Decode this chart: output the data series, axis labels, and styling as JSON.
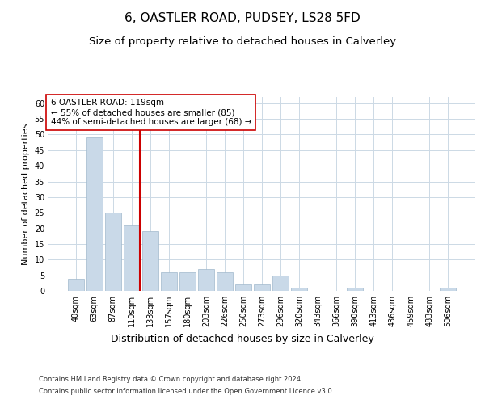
{
  "title": "6, OASTLER ROAD, PUDSEY, LS28 5FD",
  "subtitle": "Size of property relative to detached houses in Calverley",
  "xlabel": "Distribution of detached houses by size in Calverley",
  "ylabel": "Number of detached properties",
  "categories": [
    "40sqm",
    "63sqm",
    "87sqm",
    "110sqm",
    "133sqm",
    "157sqm",
    "180sqm",
    "203sqm",
    "226sqm",
    "250sqm",
    "273sqm",
    "296sqm",
    "320sqm",
    "343sqm",
    "366sqm",
    "390sqm",
    "413sqm",
    "436sqm",
    "459sqm",
    "483sqm",
    "506sqm"
  ],
  "values": [
    4,
    49,
    25,
    21,
    19,
    6,
    6,
    7,
    6,
    2,
    2,
    5,
    1,
    0,
    0,
    1,
    0,
    0,
    0,
    0,
    1
  ],
  "bar_color": "#c9d9e8",
  "bar_edge_color": "#a0b8cc",
  "grid_color": "#ccd9e5",
  "vline_x_index": 3,
  "vline_color": "#cc0000",
  "annotation_text": "6 OASTLER ROAD: 119sqm\n← 55% of detached houses are smaller (85)\n44% of semi-detached houses are larger (68) →",
  "annotation_box_color": "#ffffff",
  "annotation_box_edge_color": "#cc0000",
  "ylim": [
    0,
    62
  ],
  "yticks": [
    0,
    5,
    10,
    15,
    20,
    25,
    30,
    35,
    40,
    45,
    50,
    55,
    60
  ],
  "footnote1": "Contains HM Land Registry data © Crown copyright and database right 2024.",
  "footnote2": "Contains public sector information licensed under the Open Government Licence v3.0.",
  "title_fontsize": 11,
  "subtitle_fontsize": 9.5,
  "xlabel_fontsize": 9,
  "ylabel_fontsize": 8,
  "tick_fontsize": 7,
  "annotation_fontsize": 7.5,
  "footnote_fontsize": 6
}
